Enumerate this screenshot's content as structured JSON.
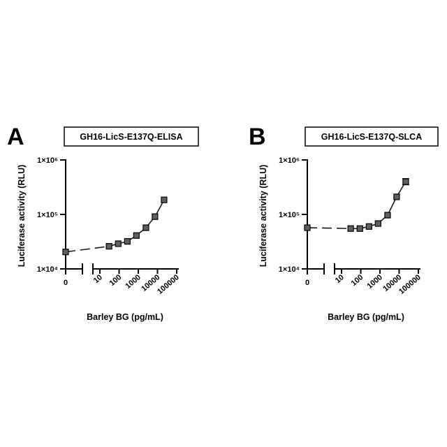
{
  "chart_data": [
    {
      "type": "line",
      "panel": "A",
      "title": "GH16-LicS-E137Q-ELISA",
      "xlabel": "Barley BG (pg/mL)",
      "ylabel": "Luciferase activity (RLU)",
      "yscale": "log",
      "xscale": "log (with separate zero segment)",
      "ylim": [
        10000,
        1000000
      ],
      "y_tick_labels": [
        "1×10⁴",
        "1×10⁵",
        "1×10⁶"
      ],
      "x_zero_label": "0",
      "x_tick_labels": [
        "10",
        "100",
        "1000",
        "10000",
        "100000"
      ],
      "zero_point": {
        "x": 0,
        "y": 20500
      },
      "points": [
        {
          "x": 30,
          "y": 26000
        },
        {
          "x": 90,
          "y": 29000
        },
        {
          "x": 270,
          "y": 32000
        },
        {
          "x": 800,
          "y": 41000
        },
        {
          "x": 2500,
          "y": 57000
        },
        {
          "x": 7400,
          "y": 91000
        },
        {
          "x": 22000,
          "y": 185000
        }
      ]
    },
    {
      "type": "line",
      "panel": "B",
      "title": "GH16-LicS-E137Q-SLCA",
      "xlabel": "Barley BG (pg/mL)",
      "ylabel": "Luciferase activity (RLU)",
      "yscale": "log",
      "xscale": "log (with separate zero segment)",
      "ylim": [
        10000,
        1000000
      ],
      "y_tick_labels": [
        "1×10⁴",
        "1×10⁵",
        "1×10⁶"
      ],
      "x_zero_label": "0",
      "x_tick_labels": [
        "10",
        "100",
        "1000",
        "10000",
        "100000"
      ],
      "zero_point": {
        "x": 0,
        "y": 57000
      },
      "points": [
        {
          "x": 30,
          "y": 55000
        },
        {
          "x": 90,
          "y": 55000
        },
        {
          "x": 270,
          "y": 60000
        },
        {
          "x": 800,
          "y": 68000
        },
        {
          "x": 2500,
          "y": 97000
        },
        {
          "x": 7400,
          "y": 210000
        },
        {
          "x": 22000,
          "y": 400000,
          "err": [
            350000,
            455000
          ]
        }
      ]
    }
  ]
}
